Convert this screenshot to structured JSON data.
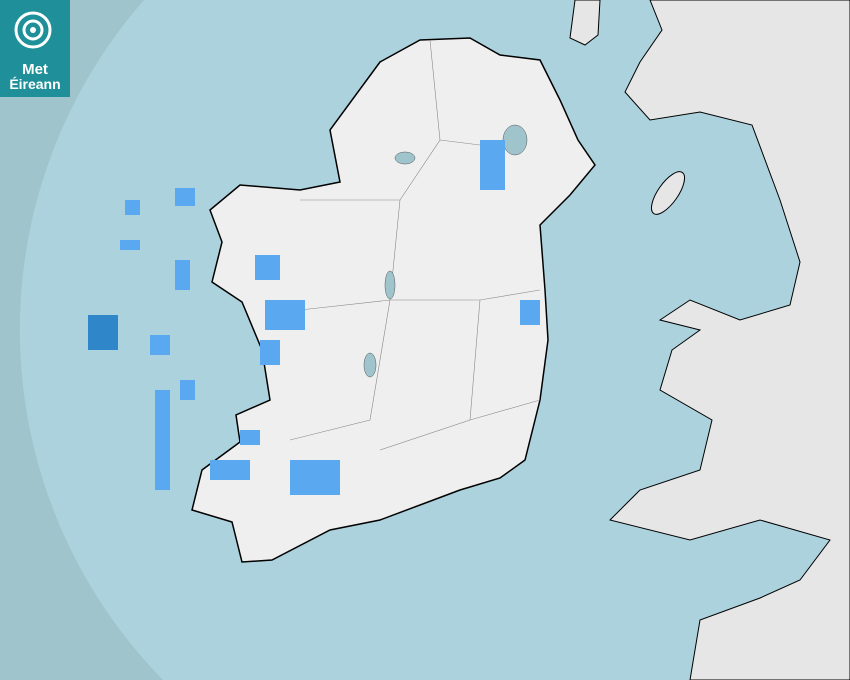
{
  "logo": {
    "line1": "Met",
    "line2": "Éireann"
  },
  "map": {
    "type": "precipitation radar",
    "colors": {
      "outside_coverage": "#9fc4cc",
      "sea": "#abd2dd",
      "land": "#eeeeee",
      "rain_light": "#5aa9f0",
      "rain_moderate": "#2f86c8",
      "coastline": "#000000"
    }
  }
}
